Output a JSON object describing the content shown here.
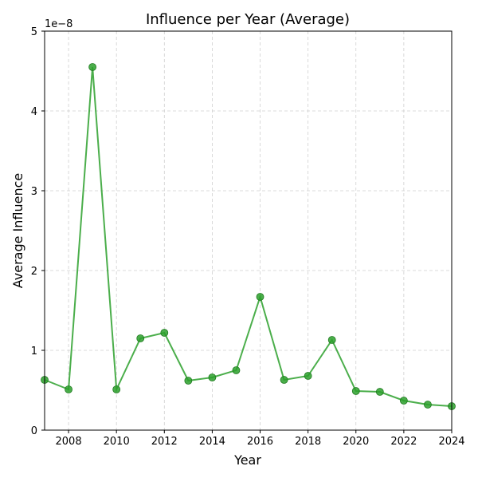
{
  "chart_data": {
    "type": "line",
    "title": "Influence per Year (Average)",
    "xlabel": "Year",
    "ylabel": "Average Influence",
    "offset_label": "1e−8",
    "xlim": [
      2007,
      2024
    ],
    "ylim": [
      0,
      5
    ],
    "x_ticks": [
      2008,
      2010,
      2012,
      2014,
      2016,
      2018,
      2020,
      2022,
      2024
    ],
    "y_ticks": [
      0,
      1,
      2,
      3,
      4,
      5
    ],
    "grid": true,
    "line_color": "#2ca02c",
    "series": [
      {
        "x": [
          2007,
          2008,
          2009,
          2010,
          2011,
          2012,
          2013,
          2014,
          2015,
          2016,
          2017,
          2018,
          2019,
          2020,
          2021,
          2022,
          2023,
          2024
        ],
        "values": [
          0.63,
          0.51,
          4.55,
          0.51,
          1.15,
          1.22,
          0.62,
          0.66,
          0.75,
          1.67,
          0.63,
          0.68,
          1.13,
          0.49,
          0.48,
          0.37,
          0.32,
          0.3
        ]
      }
    ]
  }
}
